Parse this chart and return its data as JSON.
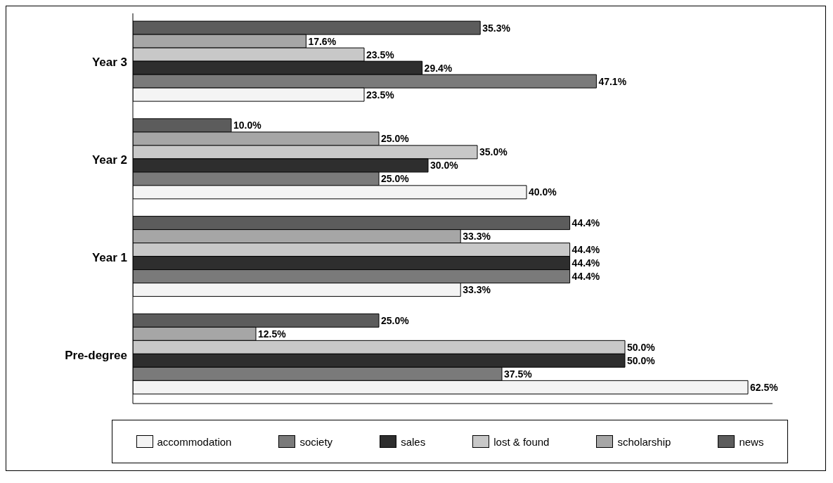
{
  "chart_data": {
    "type": "bar",
    "orientation": "horizontal",
    "categories": [
      "Year 3",
      "Year 2",
      "Year 1",
      "Pre-degree"
    ],
    "series": [
      {
        "name": "accommodation",
        "color": "#f4f4f4",
        "values": [
          23.5,
          40.0,
          33.3,
          62.5
        ],
        "value_labels": [
          "23.5%",
          "40.0%",
          "33.3%",
          "62.5%"
        ]
      },
      {
        "name": "society",
        "color": "#7a7a7a",
        "values": [
          47.1,
          25.0,
          44.4,
          37.5
        ],
        "value_labels": [
          "47.1%",
          "25.0%",
          "44.4%",
          "37.5%"
        ]
      },
      {
        "name": "sales",
        "color": "#2e2e2e",
        "values": [
          29.4,
          30.0,
          44.4,
          50.0
        ],
        "value_labels": [
          "29.4%",
          "30.0%",
          "44.4%",
          "50.0%"
        ]
      },
      {
        "name": "lost & found",
        "color": "#c8c8c8",
        "values": [
          23.5,
          35.0,
          44.4,
          50.0
        ],
        "value_labels": [
          "23.5%",
          "35.0%",
          "44.4%",
          "50.0%"
        ]
      },
      {
        "name": "scholarship",
        "color": "#a6a6a6",
        "values": [
          17.6,
          25.0,
          33.3,
          12.5
        ],
        "value_labels": [
          "17.6%",
          "25.0%",
          "33.3%",
          "12.5%"
        ]
      },
      {
        "name": "news",
        "color": "#5c5c5c",
        "values": [
          35.3,
          10.0,
          44.4,
          25.0
        ],
        "value_labels": [
          "35.3%",
          "10.0%",
          "44.4%",
          "25.0%"
        ]
      }
    ],
    "xlim": [
      0,
      65
    ],
    "tick_labels": "y",
    "legend": "bottom"
  }
}
